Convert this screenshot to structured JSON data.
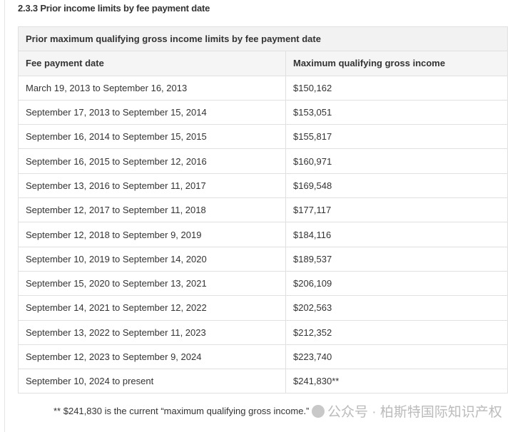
{
  "section_title": "2.3.3 Prior income limits by fee payment date",
  "table": {
    "caption": "Prior maximum qualifying gross income limits by fee payment date",
    "columns": [
      "Fee payment date",
      "Maximum qualifying gross income"
    ],
    "rows": [
      [
        "March 19, 2013 to September 16, 2013",
        "$150,162"
      ],
      [
        "September 17, 2013 to September 15, 2014",
        "$153,051"
      ],
      [
        "September 16, 2014 to September 15, 2015",
        "$155,817"
      ],
      [
        "September 16, 2015 to September 12, 2016",
        "$160,971"
      ],
      [
        "September 13, 2016 to September 11, 2017",
        "$169,548"
      ],
      [
        "September 12, 2017 to September 11, 2018",
        "$177,117"
      ],
      [
        "September 12, 2018 to September 9, 2019",
        "$184,116"
      ],
      [
        "September 10, 2019 to September 14, 2020",
        "$189,537"
      ],
      [
        "September 15, 2020 to September 13, 2021",
        "$206,109"
      ],
      [
        "September 14, 2021 to September 12, 2022",
        "$202,563"
      ],
      [
        "September 13, 2022 to September 11, 2023",
        "$212,352"
      ],
      [
        "September 12, 2023 to September 9, 2024",
        "$223,740"
      ],
      [
        "September 10, 2024 to present",
        "$241,830**"
      ]
    ]
  },
  "footnote": "** $241,830 is the current “maximum qualifying gross income.”",
  "watermark": "公众号 · 柏斯特国际知识产权"
}
